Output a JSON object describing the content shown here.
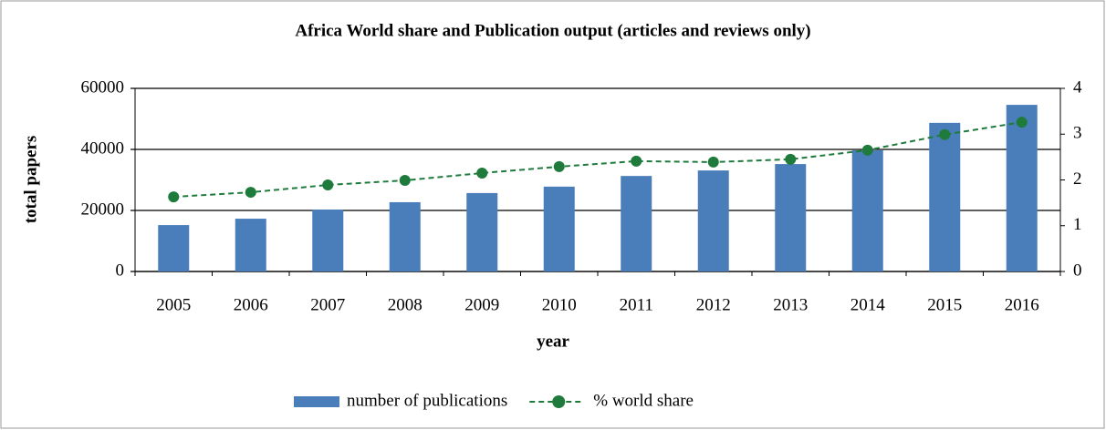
{
  "chart_data": {
    "type": "bar",
    "title": "Africa World share and Publication output (articles and reviews only)",
    "xlabel": "year",
    "ylabel": "total papers",
    "categories": [
      "2005",
      "2006",
      "2007",
      "2008",
      "2009",
      "2010",
      "2011",
      "2012",
      "2013",
      "2014",
      "2015",
      "2016"
    ],
    "series": [
      {
        "name": "number of publications",
        "type": "bar",
        "color": "#4a7ebb",
        "values": [
          15200,
          17300,
          20300,
          22700,
          25700,
          27800,
          31300,
          33100,
          35200,
          39700,
          48700,
          54600
        ]
      },
      {
        "name": "% world share",
        "type": "line",
        "axis": "y2",
        "color": "#1e7b3c",
        "values": [
          1.63,
          1.73,
          1.89,
          1.99,
          2.15,
          2.29,
          2.41,
          2.39,
          2.45,
          2.65,
          2.99,
          3.26
        ]
      }
    ],
    "ylim": [
      0,
      60000
    ],
    "yticks": [
      0,
      20000,
      40000,
      60000
    ],
    "y2lim": [
      0,
      4
    ],
    "y2ticks": [
      0,
      1,
      2,
      3,
      4
    ],
    "grid": true,
    "legend": "bottom"
  }
}
